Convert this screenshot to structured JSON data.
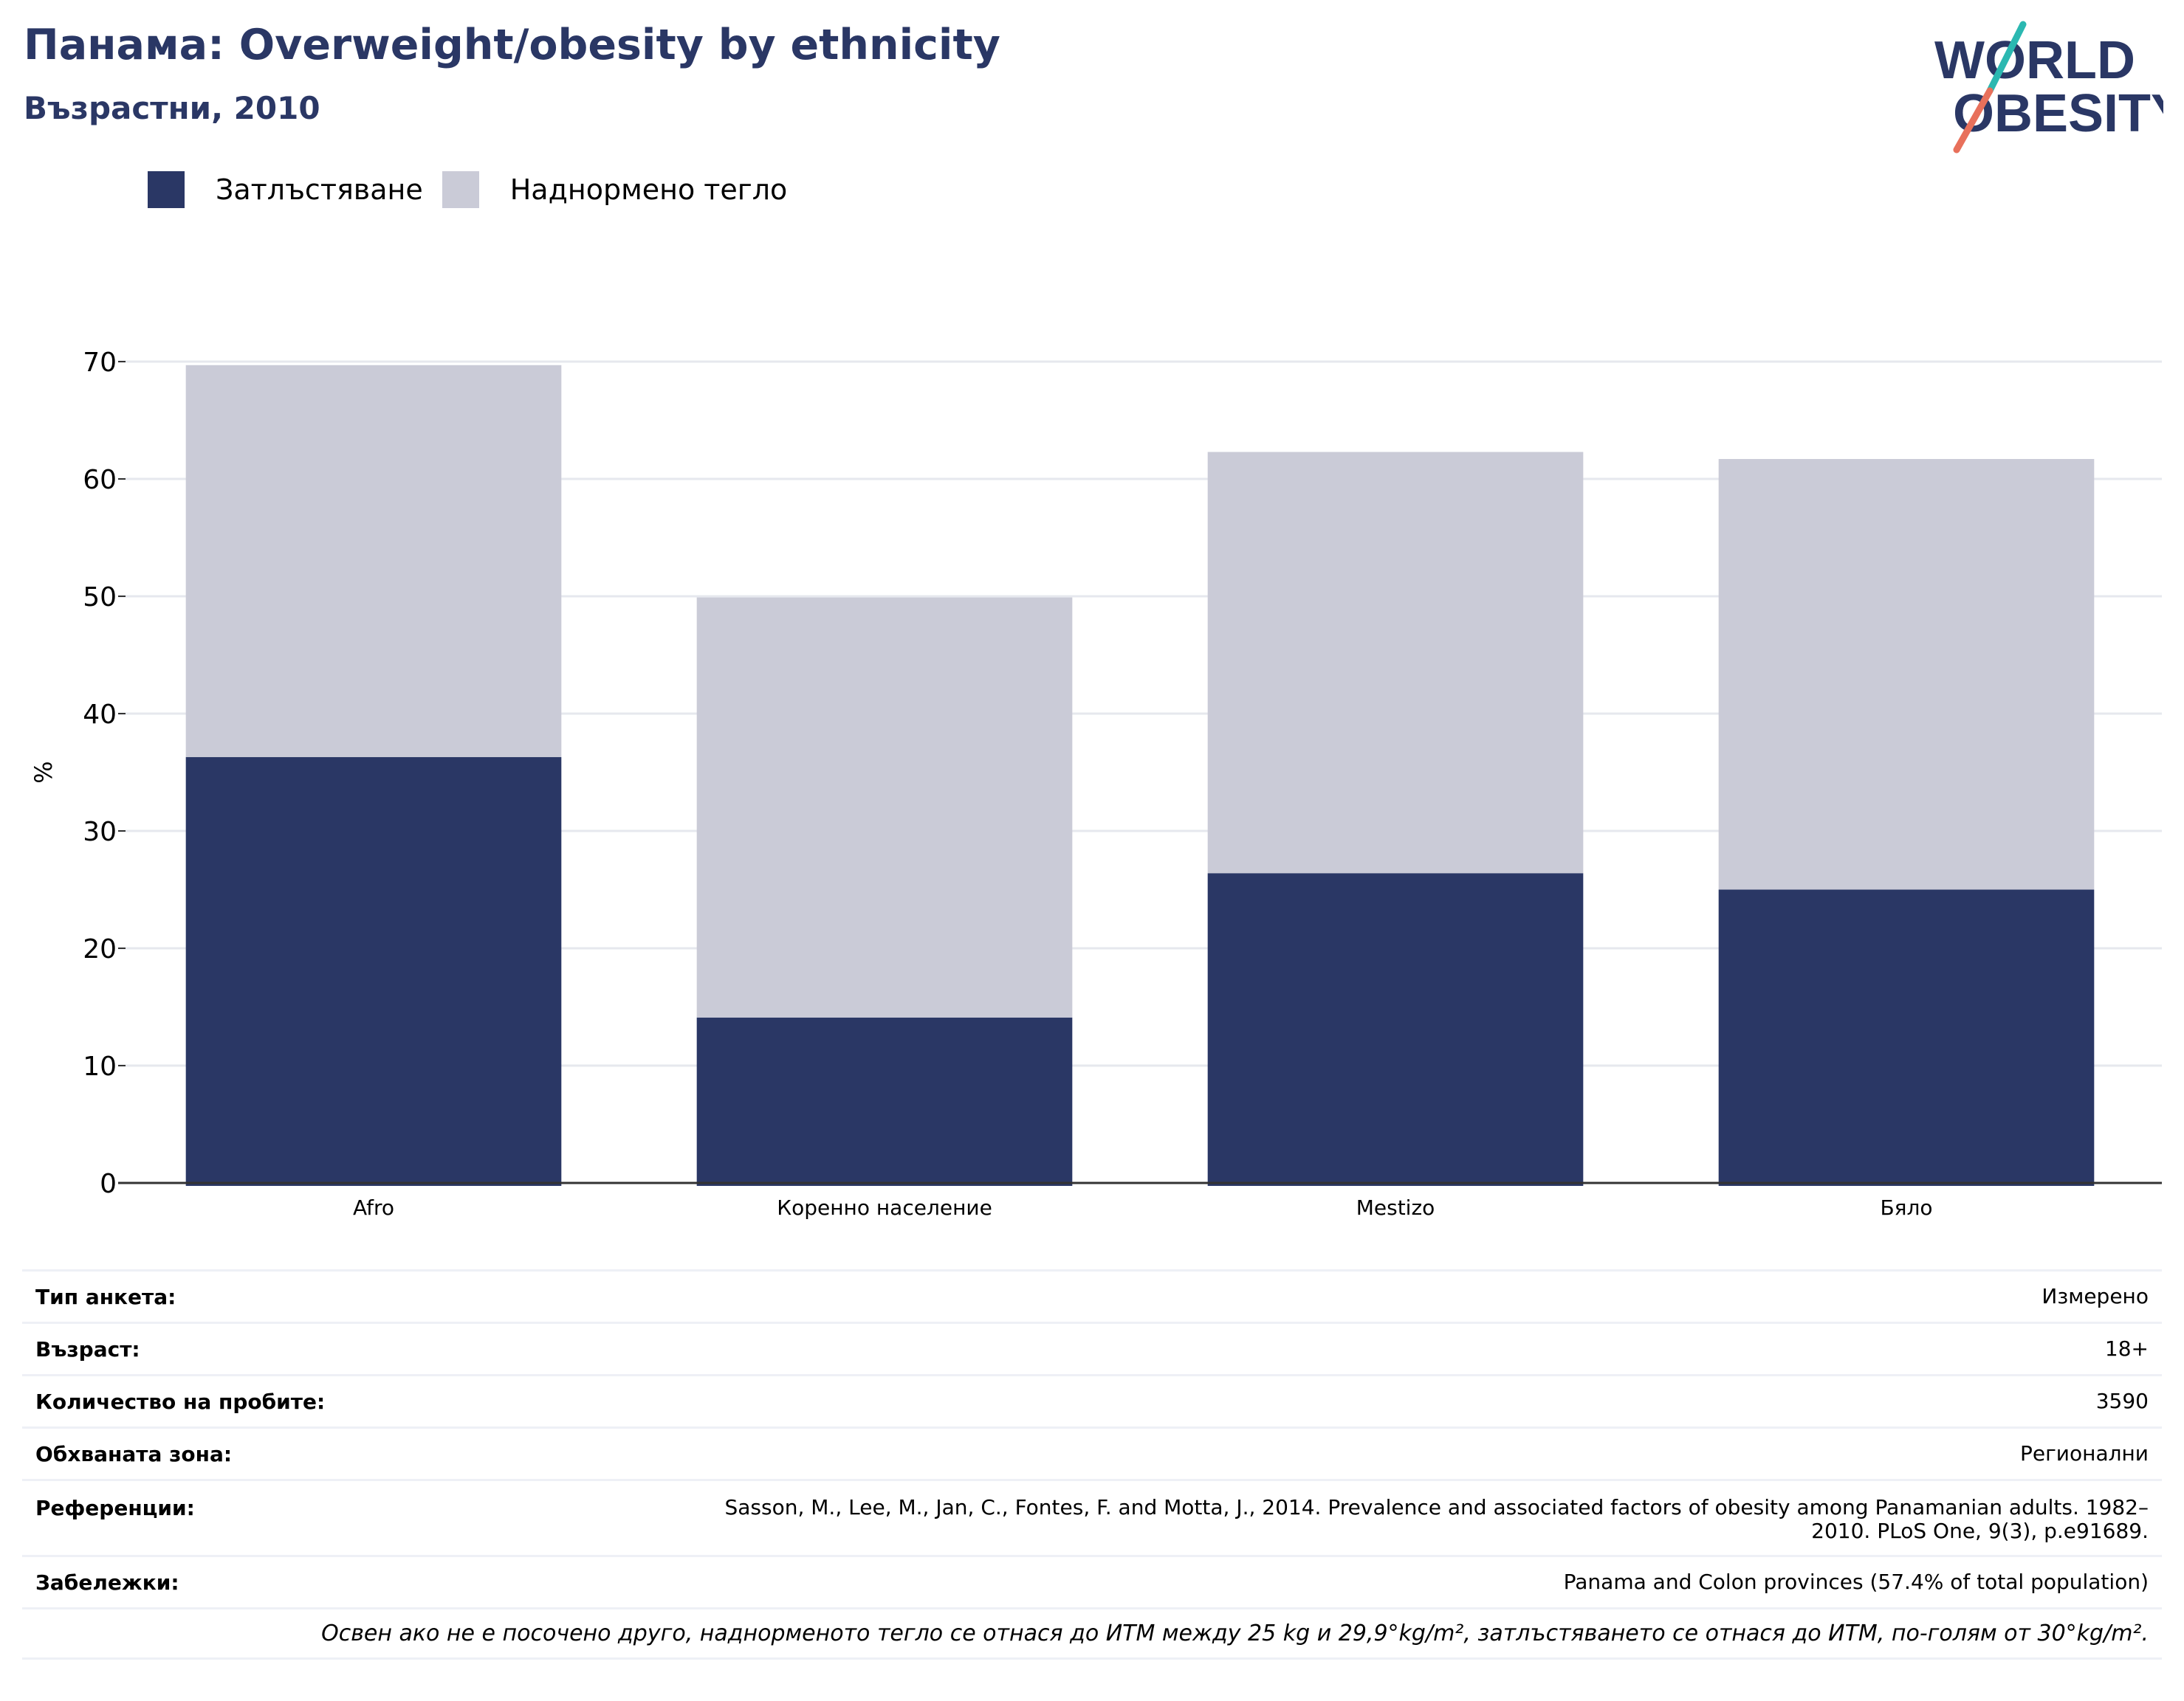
{
  "header": {
    "title": "Панама: Overweight/obesity by ethnicity",
    "subtitle": "Възрастни, 2010"
  },
  "logo": {
    "line1": "WORLD",
    "line2": "OBESITY",
    "colors": {
      "text": "#2a3765",
      "slash_top": "#2bb8b1",
      "slash_bottom": "#e8705b"
    }
  },
  "colors": {
    "obesity": "#2a3765",
    "overweight": "#cacbd7",
    "grid": "#e6e8ee",
    "axis": "#333333"
  },
  "chart_data": {
    "type": "bar",
    "stacked": true,
    "categories": [
      "Afro",
      "Коренно население",
      "Mestizo",
      "Бяло"
    ],
    "series": [
      {
        "name": "Затлъстяване",
        "values": [
          36.3,
          14.1,
          26.4,
          25.0
        ]
      },
      {
        "name": "Наднормено тегло",
        "values": [
          33.4,
          35.8,
          35.9,
          36.7
        ]
      }
    ],
    "ylabel": "%",
    "xlabel": "",
    "ylim": [
      0,
      70
    ],
    "yticks": [
      0,
      10,
      20,
      30,
      40,
      50,
      60,
      70
    ],
    "grid": true,
    "legend_position": "top-left"
  },
  "meta": {
    "rows": [
      {
        "label": "Тип анкета:",
        "value": "Измерено"
      },
      {
        "label": "Възраст:",
        "value": "18+"
      },
      {
        "label": "Количество на пробите:",
        "value": "3590"
      },
      {
        "label": "Обхваната зона:",
        "value": "Регионални"
      },
      {
        "label": "Референции:",
        "value": "Sasson, M., Lee, M., Jan, C., Fontes, F. and Motta, J., 2014. Prevalence and associated factors of obesity among Panamanian adults. 1982–2010. PLoS One, 9(3), p.e91689."
      },
      {
        "label": "Забележки:",
        "value": "Panama and Colon provinces (57.4% of total population)"
      }
    ],
    "footnote": "Освен ако не е посочено друго, наднорменото тегло се отнася до ИТМ между 25 kg и 29,9°kg/m², затлъстяването се отнася до ИТМ, по-голям от 30°kg/m²."
  }
}
